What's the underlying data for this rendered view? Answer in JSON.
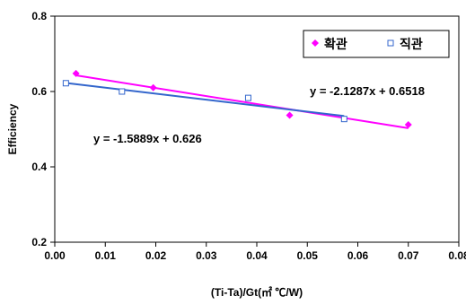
{
  "chart_data": {
    "type": "scatter",
    "xlabel": "(Ti-Ta)/Gt(㎡ ℃/W)",
    "ylabel": "Efficiency",
    "xlim": [
      0,
      0.08
    ],
    "ylim": [
      0.2,
      0.8
    ],
    "x_ticks": [
      "0.00",
      "0.01",
      "0.02",
      "0.03",
      "0.04",
      "0.05",
      "0.06",
      "0.07",
      "0.08"
    ],
    "y_ticks": [
      "0.2",
      "0.4",
      "0.6",
      "0.8"
    ],
    "grid": false,
    "legend_position": "top-right",
    "series": [
      {
        "name": "확관",
        "marker": "diamond",
        "color": "#ff00ff",
        "points": [
          [
            0.0042,
            0.648
          ],
          [
            0.0195,
            0.61
          ],
          [
            0.0465,
            0.537
          ],
          [
            0.07,
            0.512
          ]
        ],
        "trendline": {
          "slope": -2.1287,
          "intercept": 0.6518,
          "x_range": [
            0.0042,
            0.07
          ],
          "color": "#ff00ff"
        },
        "equation": "y = -2.1287x + 0.6518"
      },
      {
        "name": "직관",
        "marker": "square",
        "color": "#3366cc",
        "points": [
          [
            0.0022,
            0.622
          ],
          [
            0.0133,
            0.6
          ],
          [
            0.0383,
            0.583
          ],
          [
            0.0573,
            0.527
          ]
        ],
        "trendline": {
          "slope": -1.5889,
          "intercept": 0.626,
          "x_range": [
            0.0022,
            0.0573
          ],
          "color": "#3366cc"
        },
        "equation": "y = -1.5889x + 0.626"
      }
    ]
  }
}
